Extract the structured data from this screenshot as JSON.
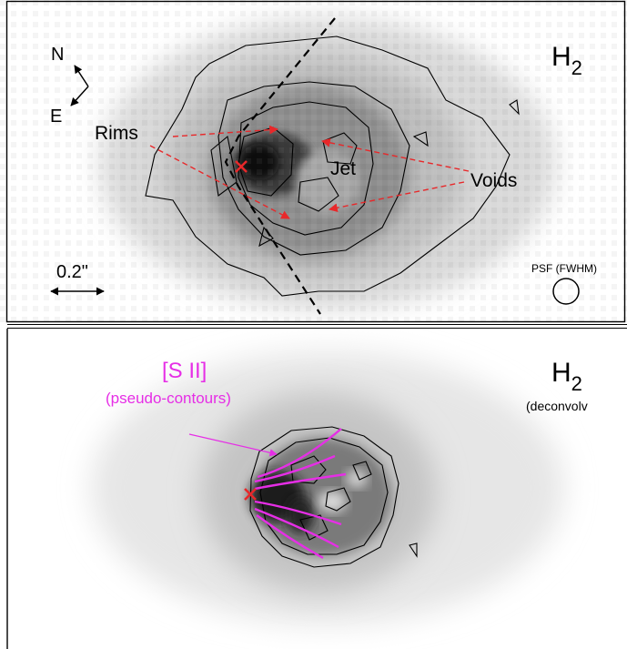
{
  "figure": {
    "top_panel": {
      "species_label": "H",
      "species_subscript": "2",
      "compass": {
        "north": "N",
        "east": "E"
      },
      "scale_bar_label": "0.2\"",
      "psf_label": "PSF (FWHM)",
      "annotations": {
        "rims": "Rims",
        "jet": "Jet",
        "voids": "Voids"
      },
      "colors": {
        "arrows": "#e8282a",
        "marker": "#e8282a",
        "contours": "#000000",
        "boundary": "#000000"
      }
    },
    "bottom_panel": {
      "species_label": "H",
      "species_subscript": "2",
      "mode_label": "(deconvolv",
      "sii_label": "[S II]",
      "sii_sublabel": "(pseudo-contours)",
      "colors": {
        "pseudo_contours": "#e62ee6",
        "marker": "#e8282a",
        "contours": "#000000"
      }
    }
  }
}
